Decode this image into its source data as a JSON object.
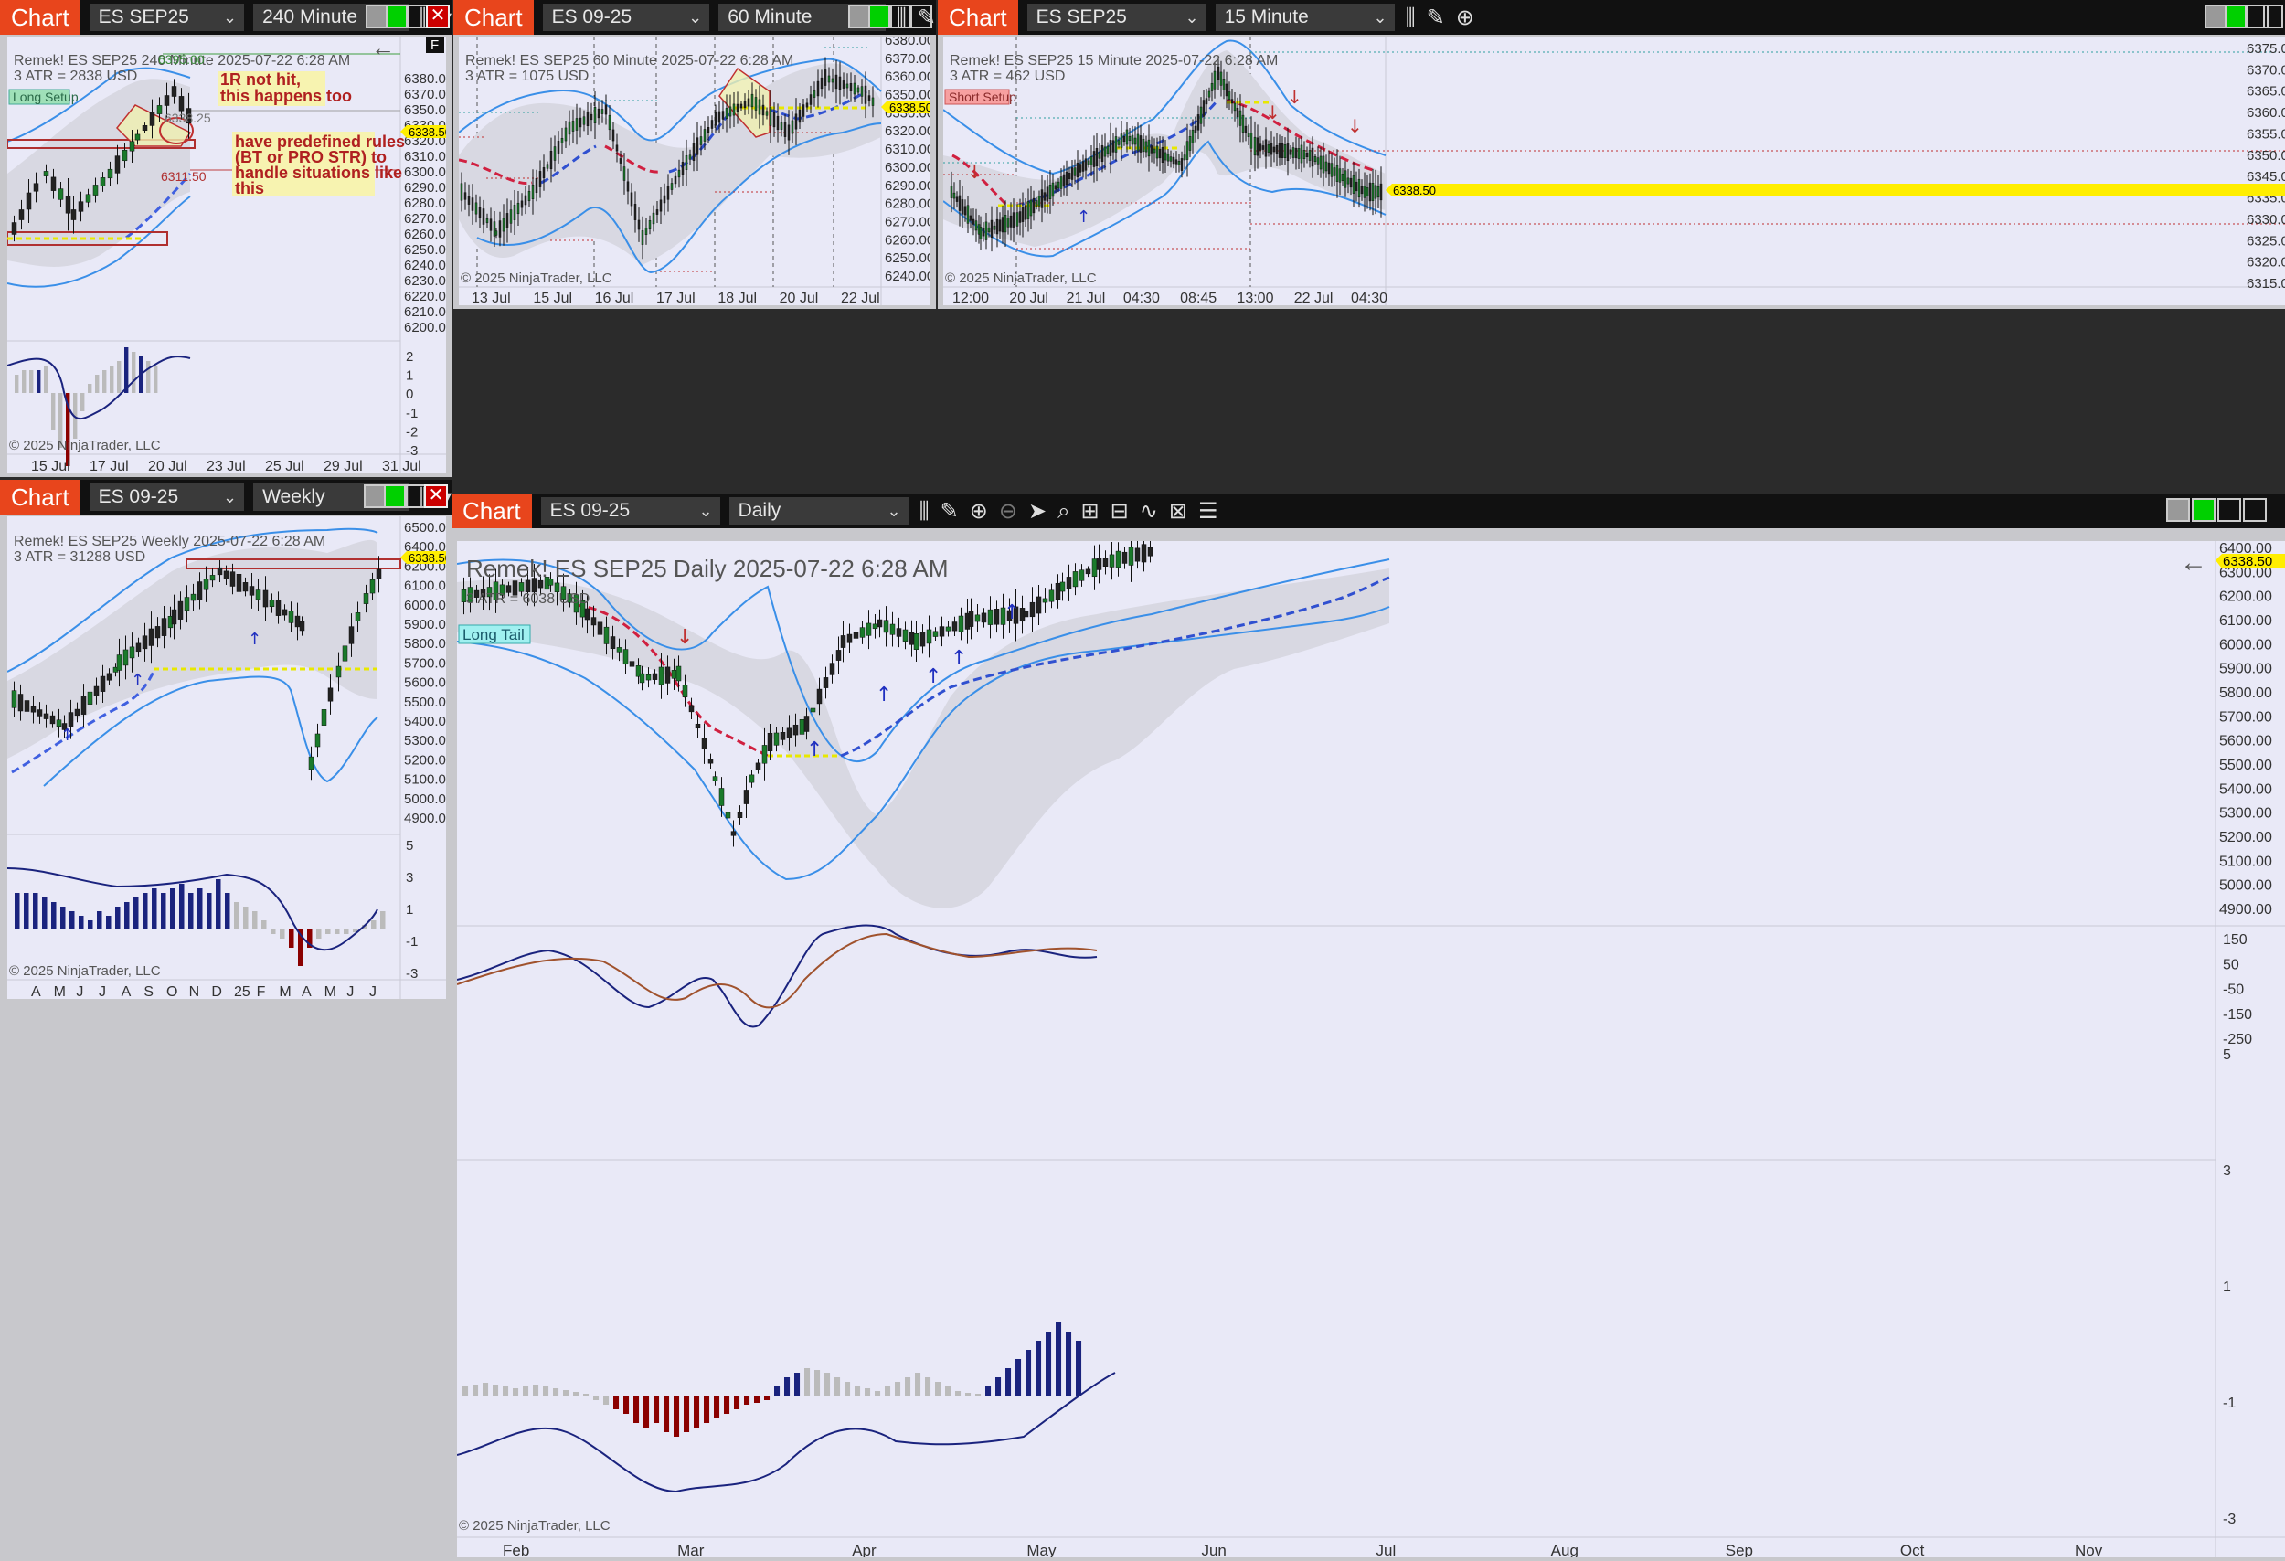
{
  "app": {
    "chart_label": "Chart",
    "copyright": "© 2025 NinjaTrader, LLC",
    "back_icon": "arrow-left-icon"
  },
  "windows": {
    "w240": {
      "instrument": "ES SEP25",
      "interval": "240 Minute",
      "header": "Remek!  ES SEP25  240 Minute  2025-07-22 6:28 AM",
      "atr": "3 ATR = 2838 USD",
      "setup_label": "Long Setup",
      "badge": "F",
      "price_box": "6338.50",
      "level_1": "6395.00",
      "level_2": "6311.50",
      "level_3": "6338.25",
      "note_1": [
        "1R not hit,",
        "this happens too"
      ],
      "note_2": [
        "have predefined rules",
        "(BT or PRO STR) to",
        "handle situations like",
        "this"
      ],
      "y_ticks": [
        "6380.00",
        "6370.00",
        "6350.00",
        "6330.00",
        "6320.00",
        "6310.00",
        "6300.00",
        "6290.00",
        "6280.00",
        "6270.00",
        "6260.00",
        "6250.00",
        "6240.00",
        "6230.00",
        "6220.00",
        "6210.00",
        "6200.00"
      ],
      "osc_ticks": [
        "2",
        "1",
        "0",
        "-1",
        "-2",
        "-3"
      ],
      "x_ticks": [
        "15 Jul",
        "17 Jul",
        "20 Jul",
        "23 Jul",
        "25 Jul",
        "29 Jul",
        "31 Jul"
      ]
    },
    "w60": {
      "instrument": "ES 09-25",
      "interval": "60 Minute",
      "header": "Remek!  ES SEP25  60 Minute  2025-07-22 6:28 AM",
      "atr": "3 ATR = 1075 USD",
      "price_box": "6338.50",
      "y_ticks": [
        "6380.00",
        "6370.00",
        "6360.00",
        "6350.00",
        "6330.00",
        "6320.00",
        "6310.00",
        "6300.00",
        "6290.00",
        "6280.00",
        "6270.00",
        "6260.00",
        "6250.00",
        "6240.00"
      ],
      "x_ticks": [
        "13 Jul",
        "15 Jul",
        "16 Jul",
        "17 Jul",
        "18 Jul",
        "20 Jul",
        "22 Jul"
      ]
    },
    "w15": {
      "instrument": "ES SEP25",
      "interval": "15 Minute",
      "header": "Remek!  ES SEP25  15 Minute  2025-07-22 6:28 AM",
      "atr": "3 ATR = 462 USD",
      "setup_label": "Short Setup",
      "price_box": "6338.50",
      "y_ticks": [
        "6375.00",
        "6370.00",
        "6365.00",
        "6360.00",
        "6355.00",
        "6350.00",
        "6345.00",
        "6335.00",
        "6330.00",
        "6325.00",
        "6320.00",
        "6315.00"
      ],
      "x_ticks": [
        "12:00",
        "20 Jul",
        "21 Jul",
        "04:30",
        "08:45",
        "13:00",
        "22 Jul",
        "04:30"
      ]
    },
    "wweek": {
      "instrument": "ES 09-25",
      "interval": "Weekly",
      "header": "Remek!  ES SEP25  Weekly  2025-07-22 6:28 AM",
      "atr": "3 ATR = 31288 USD",
      "price_box": "6338.50",
      "y_ticks": [
        "6500.00",
        "6400.00",
        "6200.00",
        "6100.00",
        "6000.00",
        "5900.00",
        "5800.00",
        "5700.00",
        "5600.00",
        "5500.00",
        "5400.00",
        "5300.00",
        "5200.00",
        "5100.00",
        "5000.00",
        "4900.00"
      ],
      "osc_ticks": [
        "5",
        "3",
        "1",
        "-1",
        "-3"
      ],
      "x_ticks": [
        "A",
        "M",
        "J",
        "J",
        "A",
        "S",
        "O",
        "N",
        "D",
        "25",
        "F",
        "M",
        "A",
        "M",
        "J",
        "J"
      ]
    },
    "wdaily": {
      "instrument": "ES 09-25",
      "interval": "Daily",
      "header": "Remek!  ES SEP25  Daily  2025-07-22 6:28 AM",
      "atr": "3 ATR = 6038 USD",
      "setup_label": "Long Tail",
      "price_box": "6338.50",
      "y_ticks": [
        "6400.00",
        "6300.00",
        "6200.00",
        "6100.00",
        "6000.00",
        "5900.00",
        "5800.00",
        "5700.00",
        "5600.00",
        "5500.00",
        "5400.00",
        "5300.00",
        "5200.00",
        "5100.00",
        "5000.00",
        "4900.00"
      ],
      "osc1_ticks": [
        "150",
        "50",
        "-50",
        "-150",
        "-250"
      ],
      "osc2_ticks": [
        "5",
        "3",
        "1",
        "-1",
        "-3"
      ],
      "x_ticks": [
        "Feb",
        "Mar",
        "Apr",
        "May",
        "Jun",
        "Jul",
        "Aug",
        "Sep",
        "Oct",
        "Nov"
      ]
    }
  }
}
